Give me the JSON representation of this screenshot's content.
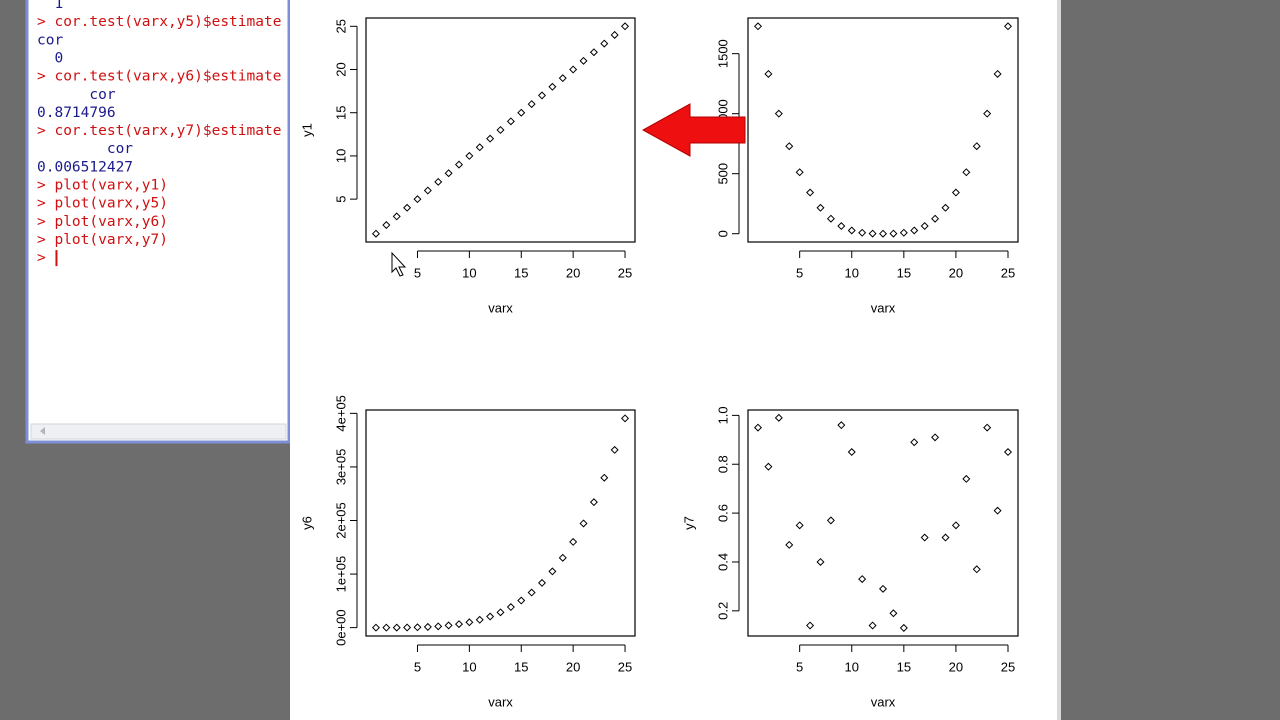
{
  "console": {
    "lines": [
      {
        "text": "  1",
        "color": "#1a1a8c"
      },
      {
        "text": "> cor.test(varx,y5)$estimate",
        "color": "#d01010"
      },
      {
        "text": "cor",
        "color": "#1a1a8c"
      },
      {
        "text": "  0",
        "color": "#1a1a8c"
      },
      {
        "text": "> cor.test(varx,y6)$estimate",
        "color": "#d01010"
      },
      {
        "text": "      cor",
        "color": "#1a1a8c"
      },
      {
        "text": "0.8714796",
        "color": "#1a1a8c"
      },
      {
        "text": "> cor.test(varx,y7)$estimate",
        "color": "#d01010"
      },
      {
        "text": "        cor",
        "color": "#1a1a8c"
      },
      {
        "text": "0.006512427",
        "color": "#1a1a8c"
      },
      {
        "text": "> plot(varx,y1)",
        "color": "#d01010"
      },
      {
        "text": "> plot(varx,y5)",
        "color": "#d01010"
      },
      {
        "text": "> plot(varx,y6)",
        "color": "#d01010"
      },
      {
        "text": "> plot(varx,y7)",
        "color": "#d01010"
      },
      {
        "text": "> ",
        "color": "#d01010"
      }
    ]
  },
  "chart_data": [
    {
      "type": "scatter",
      "x_label": "varx",
      "y_label": "y1",
      "color": "#000000",
      "x": [
        1,
        2,
        3,
        4,
        5,
        6,
        7,
        8,
        9,
        10,
        11,
        12,
        13,
        14,
        15,
        16,
        17,
        18,
        19,
        20,
        21,
        22,
        23,
        24,
        25
      ],
      "values": [
        1,
        2,
        3,
        4,
        5,
        6,
        7,
        8,
        9,
        10,
        11,
        12,
        13,
        14,
        15,
        16,
        17,
        18,
        19,
        20,
        21,
        22,
        23,
        24,
        25
      ],
      "xlim": [
        0.04,
        25.96
      ],
      "xticks": [
        5,
        10,
        15,
        20,
        25
      ],
      "ylim": [
        0.04,
        25.96
      ],
      "yticks": [
        5,
        10,
        15,
        20,
        25
      ]
    },
    {
      "type": "scatter",
      "x_label": "varx",
      "y_label": "y5",
      "color": "#000000",
      "x": [
        1,
        2,
        3,
        4,
        5,
        6,
        7,
        8,
        9,
        10,
        11,
        12,
        13,
        14,
        15,
        16,
        17,
        18,
        19,
        20,
        21,
        22,
        23,
        24,
        25
      ],
      "values": [
        1728,
        1331,
        1000,
        729,
        512,
        343,
        216,
        125,
        64,
        27,
        8,
        1,
        0,
        1,
        8,
        27,
        64,
        125,
        216,
        343,
        512,
        729,
        1000,
        1331,
        1728
      ],
      "xlim": [
        0.04,
        25.96
      ],
      "xticks": [
        5,
        10,
        15,
        20,
        25
      ],
      "ylim": [
        -69.12,
        1797.12
      ],
      "yticks": [
        0,
        500,
        1000,
        1500
      ]
    },
    {
      "type": "scatter",
      "x_label": "varx",
      "y_label": "y6",
      "color": "#000000",
      "x": [
        1,
        2,
        3,
        4,
        5,
        6,
        7,
        8,
        9,
        10,
        11,
        12,
        13,
        14,
        15,
        16,
        17,
        18,
        19,
        20,
        21,
        22,
        23,
        24,
        25
      ],
      "values": [
        1,
        16,
        81,
        256,
        625,
        1296,
        2401,
        4096,
        6561,
        10000,
        14641,
        20736,
        28561,
        38416,
        50625,
        65536,
        83521,
        104976,
        130321,
        160000,
        194481,
        234256,
        279841,
        331776,
        390625
      ],
      "xlim": [
        0.04,
        25.96
      ],
      "xticks": [
        5,
        10,
        15,
        20,
        25
      ],
      "ylim": [
        -15625,
        406250
      ],
      "yticks": [
        {
          "value": 0,
          "label": "0e+00"
        },
        {
          "value": 100000,
          "label": "1e+05"
        },
        {
          "value": 200000,
          "label": "2e+05"
        },
        {
          "value": 300000,
          "label": "3e+05"
        },
        {
          "value": 400000,
          "label": "4e+05"
        }
      ]
    },
    {
      "type": "scatter",
      "x_label": "varx",
      "y_label": "y7",
      "color": "#000000",
      "x": [
        1,
        2,
        3,
        4,
        5,
        6,
        7,
        8,
        9,
        10,
        11,
        12,
        13,
        14,
        15,
        16,
        17,
        18,
        19,
        20,
        21,
        22,
        23,
        24,
        25
      ],
      "values": [
        0.95,
        0.79,
        0.99,
        0.47,
        0.55,
        0.14,
        0.4,
        0.57,
        0.96,
        0.85,
        0.33,
        0.14,
        0.29,
        0.19,
        0.13,
        0.89,
        0.5,
        0.91,
        0.5,
        0.55,
        0.74,
        0.37,
        0.95,
        0.61,
        0.85
      ],
      "xlim": [
        0.04,
        25.96
      ],
      "xticks": [
        5,
        10,
        15,
        20,
        25
      ],
      "ylim": [
        0.097,
        1.022
      ],
      "yticks": [
        0.2,
        0.4,
        0.6,
        0.8,
        {
          "value": 1,
          "label": "1.0"
        }
      ]
    }
  ]
}
